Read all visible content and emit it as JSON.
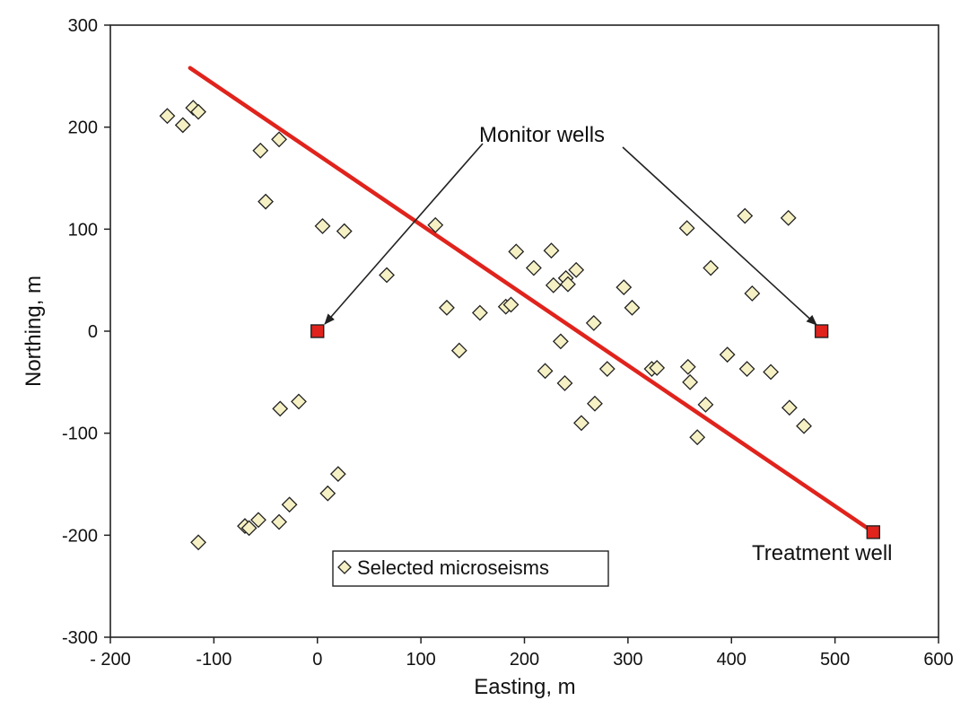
{
  "chart_data": {
    "type": "scatter",
    "title": "",
    "xlabel": "Easting, m",
    "ylabel": "Northing, m",
    "xlim": [
      -200,
      600
    ],
    "ylim": [
      -300,
      300
    ],
    "xticks": [
      -200,
      -100,
      0,
      100,
      200,
      300,
      400,
      500,
      600
    ],
    "xtick_labels": [
      "- 200",
      "-100",
      "0",
      "100",
      "200",
      "300",
      "400",
      "500",
      "600"
    ],
    "yticks": [
      300,
      200,
      100,
      0,
      -100,
      -200,
      -300
    ],
    "ytick_labels": [
      "300",
      "200",
      "100",
      "0",
      "-100",
      "-200",
      "-300"
    ],
    "grid": false,
    "legend_position": "bottom-center",
    "colors": {
      "microseism_fill": "#f6f1c4",
      "line": "#e0231c",
      "well_marker": "#e0231c"
    },
    "series": [
      {
        "name": "Selected microseisms",
        "type": "scatter",
        "marker": "diamond",
        "points": [
          [
            -145,
            211
          ],
          [
            -130,
            202
          ],
          [
            -120,
            219
          ],
          [
            -115,
            215
          ],
          [
            -55,
            177
          ],
          [
            -50,
            127
          ],
          [
            -37,
            188
          ],
          [
            5,
            103
          ],
          [
            26,
            98
          ],
          [
            67,
            55
          ],
          [
            114,
            104
          ],
          [
            125,
            23
          ],
          [
            137,
            -19
          ],
          [
            157,
            18
          ],
          [
            182,
            24
          ],
          [
            187,
            26
          ],
          [
            192,
            78
          ],
          [
            209,
            62
          ],
          [
            220,
            -39
          ],
          [
            226,
            79
          ],
          [
            228,
            45
          ],
          [
            235,
            -10
          ],
          [
            239,
            -51
          ],
          [
            240,
            52
          ],
          [
            242,
            46
          ],
          [
            250,
            60
          ],
          [
            255,
            -90
          ],
          [
            267,
            8
          ],
          [
            268,
            -71
          ],
          [
            280,
            -37
          ],
          [
            296,
            43
          ],
          [
            304,
            23
          ],
          [
            323,
            -37
          ],
          [
            328,
            -36
          ],
          [
            357,
            101
          ],
          [
            358,
            -35
          ],
          [
            360,
            -50
          ],
          [
            367,
            -104
          ],
          [
            375,
            -72
          ],
          [
            380,
            62
          ],
          [
            396,
            -23
          ],
          [
            413,
            113
          ],
          [
            415,
            -37
          ],
          [
            420,
            37
          ],
          [
            438,
            -40
          ],
          [
            455,
            111
          ],
          [
            456,
            -75
          ],
          [
            470,
            -93
          ],
          [
            -18,
            -69
          ],
          [
            -36,
            -76
          ],
          [
            -115,
            -207
          ],
          [
            -70,
            -191
          ],
          [
            -66,
            -193
          ],
          [
            -57,
            -185
          ],
          [
            -37,
            -187
          ],
          [
            -27,
            -170
          ],
          [
            10,
            -159
          ],
          [
            20,
            -140
          ]
        ]
      }
    ],
    "fracture_line": {
      "points": [
        [
          -123,
          258
        ],
        [
          537,
          -197
        ]
      ]
    },
    "wells": {
      "monitor": [
        [
          0,
          0
        ],
        [
          487,
          0
        ]
      ],
      "treatment": [
        [
          537,
          -197
        ]
      ]
    },
    "annotations": {
      "monitor_label": "Monitor wells",
      "treatment_label": "Treatment well"
    }
  }
}
